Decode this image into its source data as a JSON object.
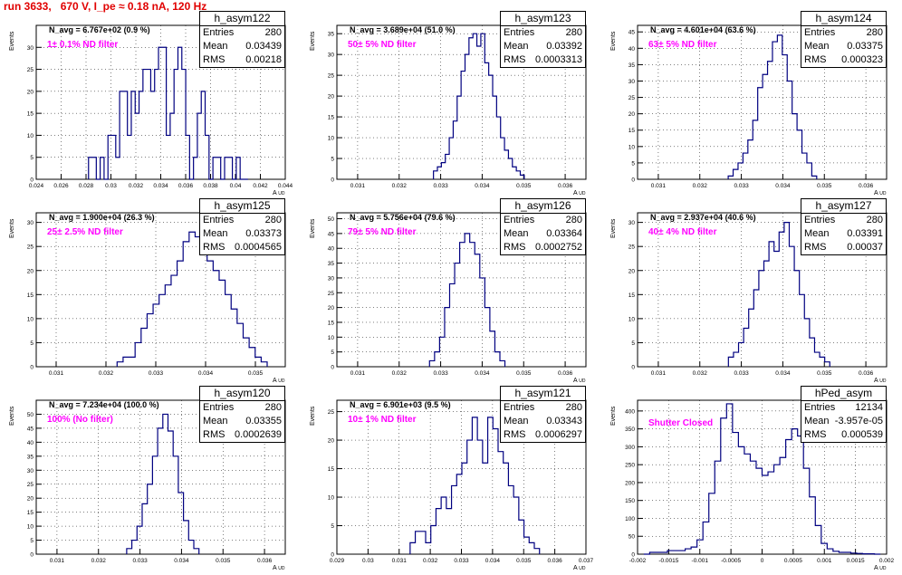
{
  "title": "run 3633,   670 V, I_pe ≈ 0.18 nA, 120 Hz",
  "colors": {
    "hist": "#000080",
    "title": "#e00000",
    "filter": "#ff00ff"
  },
  "chart_data": [
    {
      "type": "bar",
      "name": "h_asym122",
      "entries": "280",
      "mean": "0.03439",
      "rms": "0.00218",
      "navg": "N_avg = 6.767e+02 (0.9 %)",
      "filter": "1± 0.1% ND filter",
      "xlim": [
        0.024,
        0.044
      ],
      "ylim": [
        0,
        35
      ],
      "xticks": [
        "0.024",
        "0.026",
        "0.028",
        "0.03",
        "0.032",
        "0.034",
        "0.036",
        "0.038",
        "0.04",
        "0.042",
        "0.044"
      ],
      "yticks": [
        "0",
        "5",
        "10",
        "15",
        "20",
        "25",
        "30"
      ],
      "xlabel": "A_{UD}",
      "ylabel": "Events",
      "values": [
        5,
        5,
        0,
        5,
        0,
        10,
        10,
        5,
        20,
        20,
        10,
        20,
        15,
        20,
        25,
        25,
        20,
        25,
        30,
        30,
        10,
        15,
        25,
        30,
        25,
        10,
        0,
        5,
        15,
        20,
        10,
        0,
        5,
        5,
        0,
        5,
        5,
        0,
        5,
        0,
        0
      ]
    },
    {
      "type": "bar",
      "name": "h_asym123",
      "entries": "280",
      "mean": "0.03392",
      "rms": "0.0003313",
      "navg": "N_avg = 3.689e+04 (51.0 %)",
      "filter": "50± 5% ND filter",
      "xlim": [
        0.0305,
        0.0365
      ],
      "ylim": [
        0,
        37
      ],
      "xticks": [
        "0.031",
        "0.032",
        "0.033",
        "0.034",
        "0.035",
        "0.036"
      ],
      "yticks": [
        "0",
        "5",
        "10",
        "15",
        "20",
        "25",
        "30",
        "35"
      ],
      "xlabel": "A_{UD}",
      "ylabel": "Events",
      "values": [
        2,
        3,
        4,
        6,
        10,
        14,
        20,
        26,
        30,
        34,
        35,
        32,
        35,
        28,
        25,
        20,
        15,
        10,
        7,
        5,
        3,
        2,
        1
      ]
    },
    {
      "type": "bar",
      "name": "h_asym124",
      "entries": "280",
      "mean": "0.03375",
      "rms": "0.000323",
      "navg": "N_avg = 4.601e+04 (63.6 %)",
      "filter": "63± 5% ND filter",
      "xlim": [
        0.0305,
        0.0365
      ],
      "ylim": [
        0,
        47
      ],
      "xticks": [
        "0.031",
        "0.032",
        "0.033",
        "0.034",
        "0.035",
        "0.036"
      ],
      "yticks": [
        "0",
        "5",
        "10",
        "15",
        "20",
        "25",
        "30",
        "35",
        "40",
        "45"
      ],
      "xlabel": "A_{UD}",
      "ylabel": "Events",
      "values": [
        1,
        3,
        5,
        8,
        12,
        18,
        28,
        32,
        36,
        42,
        44,
        38,
        30,
        20,
        15,
        8,
        5,
        1
      ]
    },
    {
      "type": "bar",
      "name": "h_asym125",
      "entries": "280",
      "mean": "0.03373",
      "rms": "0.0004565",
      "navg": "N_avg = 1.900e+04 (26.3 %)",
      "filter": "25± 2.5% ND filter",
      "xlim": [
        0.0306,
        0.0356
      ],
      "ylim": [
        0,
        32
      ],
      "xticks": [
        "0.031",
        "0.032",
        "0.033",
        "0.034",
        "0.035"
      ],
      "yticks": [
        "0",
        "5",
        "10",
        "15",
        "20",
        "25",
        "30"
      ],
      "xlabel": "A_{UD}",
      "ylabel": "Events",
      "values": [
        1,
        2,
        2,
        5,
        8,
        11,
        13,
        15,
        17,
        19,
        22,
        26,
        28,
        27,
        24,
        22,
        20,
        18,
        15,
        12,
        9,
        6,
        4,
        2,
        1
      ]
    },
    {
      "type": "bar",
      "name": "h_asym126",
      "entries": "280",
      "mean": "0.03364",
      "rms": "0.0002752",
      "navg": "N_avg = 5.756e+04 (79.6 %)",
      "filter": "79± 5% ND filter",
      "xlim": [
        0.0305,
        0.0365
      ],
      "ylim": [
        0,
        52
      ],
      "xticks": [
        "0.031",
        "0.032",
        "0.033",
        "0.034",
        "0.035",
        "0.036"
      ],
      "yticks": [
        "0",
        "5",
        "10",
        "15",
        "20",
        "25",
        "30",
        "35",
        "40",
        "45",
        "50"
      ],
      "xlabel": "A_{UD}",
      "ylabel": "Events",
      "values": [
        2,
        5,
        10,
        20,
        28,
        35,
        42,
        45,
        42,
        38,
        30,
        20,
        12,
        5,
        2
      ]
    },
    {
      "type": "bar",
      "name": "h_asym127",
      "entries": "280",
      "mean": "0.03391",
      "rms": "0.00037",
      "navg": "N_avg = 2.937e+04 (40.6 %)",
      "filter": "40± 4% ND filter",
      "xlim": [
        0.0305,
        0.0365
      ],
      "ylim": [
        0,
        32
      ],
      "xticks": [
        "0.031",
        "0.032",
        "0.033",
        "0.034",
        "0.035",
        "0.036"
      ],
      "yticks": [
        "0",
        "5",
        "10",
        "15",
        "20",
        "25",
        "30"
      ],
      "xlabel": "A_{UD}",
      "ylabel": "Events",
      "values": [
        2,
        3,
        5,
        8,
        12,
        16,
        20,
        22,
        26,
        24,
        28,
        30,
        25,
        20,
        15,
        10,
        6,
        3,
        2,
        1
      ]
    },
    {
      "type": "bar",
      "name": "h_asym120",
      "entries": "280",
      "mean": "0.03355",
      "rms": "0.0002639",
      "navg": "N_avg = 7.234e+04 (100.0 %)",
      "filter": "100% (No filter)",
      "xlim": [
        0.0305,
        0.0365
      ],
      "ylim": [
        0,
        55
      ],
      "xticks": [
        "0.031",
        "0.032",
        "0.033",
        "0.034",
        "0.035",
        "0.036"
      ],
      "yticks": [
        "0",
        "5",
        "10",
        "15",
        "20",
        "25",
        "30",
        "35",
        "40",
        "45",
        "50"
      ],
      "xlabel": "A_{UD}",
      "ylabel": "Events",
      "values": [
        2,
        5,
        10,
        18,
        25,
        35,
        45,
        50,
        44,
        35,
        22,
        12,
        5,
        2
      ]
    },
    {
      "type": "bar",
      "name": "h_asym121",
      "entries": "280",
      "mean": "0.03343",
      "rms": "0.0006297",
      "navg": "N_avg = 6.901e+03 (9.5 %)",
      "filter": "10± 1% ND filter",
      "xlim": [
        0.029,
        0.037
      ],
      "ylim": [
        0,
        27
      ],
      "xticks": [
        "0.029",
        "0.03",
        "0.031",
        "0.032",
        "0.033",
        "0.034",
        "0.035",
        "0.036",
        "0.037"
      ],
      "yticks": [
        "0",
        "5",
        "10",
        "15",
        "20",
        "25"
      ],
      "xlabel": "A_{UD}",
      "ylabel": "Events",
      "values": [
        2,
        4,
        4,
        2,
        5,
        8,
        10,
        8,
        12,
        14,
        16,
        20,
        24,
        20,
        16,
        24,
        22,
        18,
        16,
        12,
        10,
        6,
        3,
        2,
        1
      ]
    },
    {
      "type": "bar",
      "name": "hPed_asym",
      "entries": "12134",
      "mean": "-3.957e-05",
      "rms": "0.000539",
      "navg": "",
      "filter": "Shutter Closed",
      "xlim": [
        -0.002,
        0.002
      ],
      "ylim": [
        0,
        430
      ],
      "xticks": [
        "-0.002",
        "-0.0015",
        "-0.001",
        "-0.0005",
        "0",
        "0.0005",
        "0.001",
        "0.0015",
        "0.002"
      ],
      "yticks": [
        "0",
        "50",
        "100",
        "150",
        "200",
        "250",
        "300",
        "350",
        "400"
      ],
      "xlabel": "A_{UD}",
      "ylabel": "Events",
      "values": [
        0,
        5,
        5,
        5,
        10,
        10,
        10,
        15,
        20,
        40,
        90,
        170,
        260,
        380,
        420,
        340,
        300,
        280,
        260,
        240,
        220,
        230,
        250,
        270,
        320,
        350,
        330,
        240,
        160,
        80,
        30,
        15,
        8,
        5,
        5,
        3,
        2,
        1,
        1,
        0
      ]
    }
  ]
}
